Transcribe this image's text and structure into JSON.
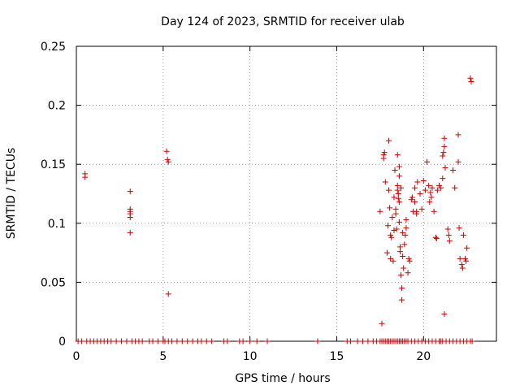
{
  "chart_data": {
    "type": "scatter",
    "title": "Day 124 of 2023, SRMTID for receiver ulab",
    "xlabel": "GPS time / hours",
    "ylabel": "SRMTID / TECUs",
    "xlim": [
      0,
      24.2
    ],
    "ylim": [
      0,
      0.25
    ],
    "xticks": [
      0,
      5,
      10,
      15,
      20
    ],
    "yticks": [
      0,
      0.05,
      0.1,
      0.15,
      0.2,
      0.25
    ],
    "xtick_labels": [
      "0",
      "5",
      "10",
      "15",
      "20"
    ],
    "ytick_labels": [
      "0",
      "0.05",
      "0.1",
      "0.15",
      "0.2",
      "0.25"
    ],
    "grid": true,
    "marker": "+",
    "color": "#cc0000",
    "series": [
      {
        "name": "SRMTID",
        "points": [
          [
            0.5,
            0.142
          ],
          [
            0.5,
            0.139
          ],
          [
            3.1,
            0.127
          ],
          [
            3.1,
            0.112
          ],
          [
            3.1,
            0.11
          ],
          [
            3.1,
            0.108
          ],
          [
            3.1,
            0.105
          ],
          [
            3.1,
            0.092
          ],
          [
            5.2,
            0.161
          ],
          [
            5.25,
            0.154
          ],
          [
            5.3,
            0.152
          ],
          [
            5.3,
            0.04
          ],
          [
            17.6,
            0.015
          ],
          [
            17.5,
            0.11
          ],
          [
            17.7,
            0.158
          ],
          [
            17.75,
            0.16
          ],
          [
            17.7,
            0.155
          ],
          [
            17.8,
            0.135
          ],
          [
            17.9,
            0.075
          ],
          [
            17.95,
            0.098
          ],
          [
            18.0,
            0.17
          ],
          [
            18.0,
            0.128
          ],
          [
            18.05,
            0.113
          ],
          [
            18.1,
            0.09
          ],
          [
            18.1,
            0.07
          ],
          [
            18.15,
            0.088
          ],
          [
            18.2,
            0.105
          ],
          [
            18.25,
            0.068
          ],
          [
            18.3,
            0.122
          ],
          [
            18.3,
            0.094
          ],
          [
            18.35,
            0.145
          ],
          [
            18.4,
            0.112
          ],
          [
            18.4,
            0.108
          ],
          [
            18.45,
            0.095
          ],
          [
            18.5,
            0.158
          ],
          [
            18.5,
            0.132
          ],
          [
            18.5,
            0.128
          ],
          [
            18.55,
            0.125
          ],
          [
            18.55,
            0.121
          ],
          [
            18.6,
            0.118
          ],
          [
            18.6,
            0.148
          ],
          [
            18.6,
            0.14
          ],
          [
            18.6,
            0.101
          ],
          [
            18.65,
            0.08
          ],
          [
            18.65,
            0.076
          ],
          [
            18.7,
            0.13
          ],
          [
            18.7,
            0.056
          ],
          [
            18.75,
            0.045
          ],
          [
            18.75,
            0.035
          ],
          [
            18.8,
            0.072
          ],
          [
            18.8,
            0.092
          ],
          [
            18.85,
            0.062
          ],
          [
            18.9,
            0.082
          ],
          [
            18.95,
            0.09
          ],
          [
            19.0,
            0.096
          ],
          [
            19.0,
            0.103
          ],
          [
            19.1,
            0.058
          ],
          [
            19.15,
            0.07
          ],
          [
            19.2,
            0.068
          ],
          [
            19.3,
            0.12
          ],
          [
            19.35,
            0.122
          ],
          [
            19.4,
            0.11
          ],
          [
            19.5,
            0.13
          ],
          [
            19.5,
            0.118
          ],
          [
            19.6,
            0.11
          ],
          [
            19.6,
            0.108
          ],
          [
            19.65,
            0.135
          ],
          [
            19.8,
            0.125
          ],
          [
            19.9,
            0.112
          ],
          [
            20.0,
            0.136
          ],
          [
            20.1,
            0.128
          ],
          [
            20.2,
            0.152
          ],
          [
            20.3,
            0.132
          ],
          [
            20.35,
            0.118
          ],
          [
            20.4,
            0.126
          ],
          [
            20.45,
            0.122
          ],
          [
            20.5,
            0.13
          ],
          [
            20.6,
            0.11
          ],
          [
            20.7,
            0.088
          ],
          [
            20.75,
            0.087
          ],
          [
            20.8,
            0.128
          ],
          [
            20.9,
            0.132
          ],
          [
            21.0,
            0.13
          ],
          [
            21.1,
            0.138
          ],
          [
            21.1,
            0.157
          ],
          [
            21.15,
            0.16
          ],
          [
            21.2,
            0.165
          ],
          [
            21.2,
            0.172
          ],
          [
            21.2,
            0.023
          ],
          [
            21.25,
            0.147
          ],
          [
            21.4,
            0.095
          ],
          [
            21.45,
            0.09
          ],
          [
            21.5,
            0.085
          ],
          [
            21.7,
            0.145
          ],
          [
            21.8,
            0.13
          ],
          [
            22.0,
            0.175
          ],
          [
            22.0,
            0.152
          ],
          [
            22.05,
            0.096
          ],
          [
            22.1,
            0.07
          ],
          [
            22.2,
            0.065
          ],
          [
            22.25,
            0.062
          ],
          [
            22.3,
            0.09
          ],
          [
            22.4,
            0.07
          ],
          [
            22.45,
            0.068
          ],
          [
            22.5,
            0.079
          ],
          [
            22.7,
            0.223
          ],
          [
            22.75,
            0.22
          ],
          [
            0.1,
            0
          ],
          [
            0.3,
            0
          ],
          [
            0.6,
            0
          ],
          [
            0.8,
            0
          ],
          [
            1.0,
            0
          ],
          [
            1.2,
            0
          ],
          [
            1.4,
            0
          ],
          [
            1.6,
            0
          ],
          [
            1.8,
            0
          ],
          [
            2.0,
            0
          ],
          [
            2.3,
            0
          ],
          [
            2.6,
            0
          ],
          [
            2.9,
            0
          ],
          [
            3.2,
            0
          ],
          [
            3.4,
            0
          ],
          [
            3.6,
            0
          ],
          [
            3.8,
            0
          ],
          [
            4.2,
            0
          ],
          [
            4.4,
            0
          ],
          [
            4.7,
            0
          ],
          [
            5.0,
            0
          ],
          [
            5.1,
            0
          ],
          [
            5.3,
            0
          ],
          [
            5.5,
            0
          ],
          [
            5.8,
            0
          ],
          [
            6.1,
            0
          ],
          [
            6.4,
            0
          ],
          [
            6.7,
            0
          ],
          [
            7.0,
            0
          ],
          [
            7.2,
            0
          ],
          [
            7.5,
            0
          ],
          [
            7.8,
            0
          ],
          [
            8.5,
            0
          ],
          [
            8.7,
            0
          ],
          [
            9.4,
            0
          ],
          [
            9.6,
            0
          ],
          [
            10.0,
            0
          ],
          [
            10.4,
            0
          ],
          [
            11.0,
            0
          ],
          [
            13.9,
            0
          ],
          [
            15.6,
            0
          ],
          [
            15.8,
            0
          ],
          [
            16.2,
            0
          ],
          [
            16.5,
            0
          ],
          [
            16.8,
            0
          ],
          [
            17.1,
            0
          ],
          [
            17.3,
            0
          ],
          [
            17.5,
            0
          ],
          [
            17.6,
            0
          ],
          [
            17.7,
            0
          ],
          [
            17.8,
            0
          ],
          [
            17.9,
            0
          ],
          [
            18.0,
            0
          ],
          [
            18.1,
            0
          ],
          [
            18.2,
            0
          ],
          [
            18.3,
            0
          ],
          [
            18.4,
            0
          ],
          [
            18.5,
            0
          ],
          [
            18.6,
            0
          ],
          [
            18.7,
            0
          ],
          [
            18.8,
            0
          ],
          [
            18.9,
            0
          ],
          [
            19.0,
            0
          ],
          [
            19.1,
            0
          ],
          [
            19.3,
            0
          ],
          [
            19.5,
            0
          ],
          [
            19.7,
            0
          ],
          [
            19.9,
            0
          ],
          [
            20.1,
            0
          ],
          [
            20.3,
            0
          ],
          [
            20.5,
            0
          ],
          [
            20.7,
            0
          ],
          [
            20.9,
            0
          ],
          [
            21.0,
            0
          ],
          [
            21.1,
            0
          ],
          [
            21.3,
            0
          ],
          [
            21.5,
            0
          ],
          [
            21.7,
            0
          ],
          [
            21.9,
            0
          ],
          [
            22.1,
            0
          ],
          [
            22.3,
            0
          ],
          [
            22.5,
            0
          ],
          [
            22.7,
            0
          ],
          [
            22.8,
            0
          ]
        ]
      }
    ]
  }
}
